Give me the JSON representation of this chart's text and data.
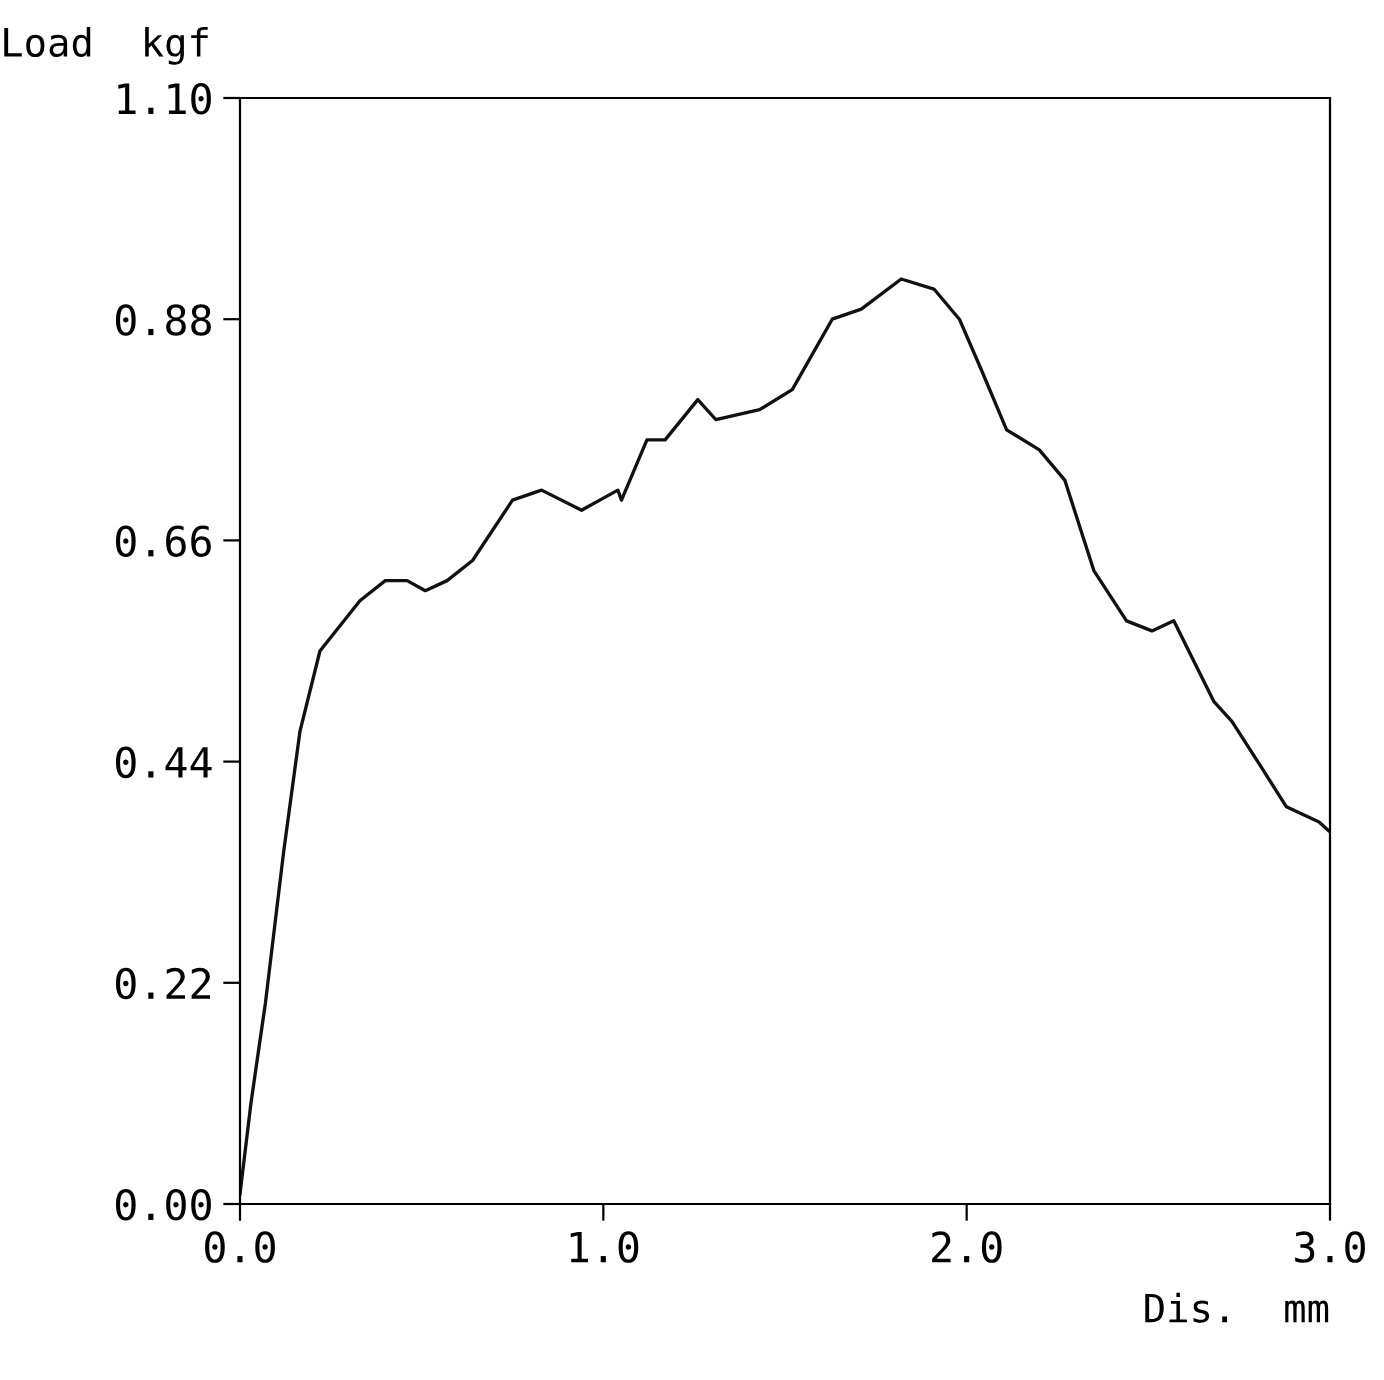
{
  "chart_data": {
    "type": "line",
    "xlabel": "Dis.  mm",
    "ylabel": "Load  kgf",
    "x": [
      0.0,
      0.03,
      0.07,
      0.12,
      0.165,
      0.22,
      0.33,
      0.4,
      0.46,
      0.51,
      0.57,
      0.64,
      0.75,
      0.83,
      0.94,
      1.04,
      1.05,
      1.12,
      1.17,
      1.26,
      1.31,
      1.43,
      1.52,
      1.63,
      1.71,
      1.82,
      1.91,
      1.98,
      2.04,
      2.11,
      2.2,
      2.27,
      2.35,
      2.44,
      2.51,
      2.57,
      2.68,
      2.73,
      2.81,
      2.88,
      2.97,
      3.0
    ],
    "series": [
      {
        "color": "#111111",
        "values": [
          0.01,
          0.1,
          0.2,
          0.35,
          0.47,
          0.55,
          0.6,
          0.62,
          0.62,
          0.61,
          0.62,
          0.64,
          0.7,
          0.71,
          0.69,
          0.71,
          0.7,
          0.76,
          0.76,
          0.8,
          0.78,
          0.79,
          0.81,
          0.88,
          0.89,
          0.92,
          0.91,
          0.88,
          0.83,
          0.77,
          0.75,
          0.72,
          0.63,
          0.58,
          0.57,
          0.58,
          0.5,
          0.48,
          0.435,
          0.395,
          0.38,
          0.37
        ]
      }
    ],
    "xlim": [
      0.0,
      3.0
    ],
    "ylim": [
      0.0,
      1.1
    ],
    "xticks": [
      {
        "value": 0.0,
        "label": "0.0"
      },
      {
        "value": 1.0,
        "label": "1.0"
      },
      {
        "value": 2.0,
        "label": "2.0"
      },
      {
        "value": 3.0,
        "label": "3.0"
      }
    ],
    "yticks": [
      {
        "value": 0.0,
        "label": "0.00"
      },
      {
        "value": 0.22,
        "label": "0.22"
      },
      {
        "value": 0.44,
        "label": "0.44"
      },
      {
        "value": 0.66,
        "label": "0.66"
      },
      {
        "value": 0.88,
        "label": "0.88"
      },
      {
        "value": 1.1,
        "label": "1.10"
      }
    ],
    "grid": false,
    "legend": false,
    "marker": "none",
    "line_style": "solid"
  }
}
